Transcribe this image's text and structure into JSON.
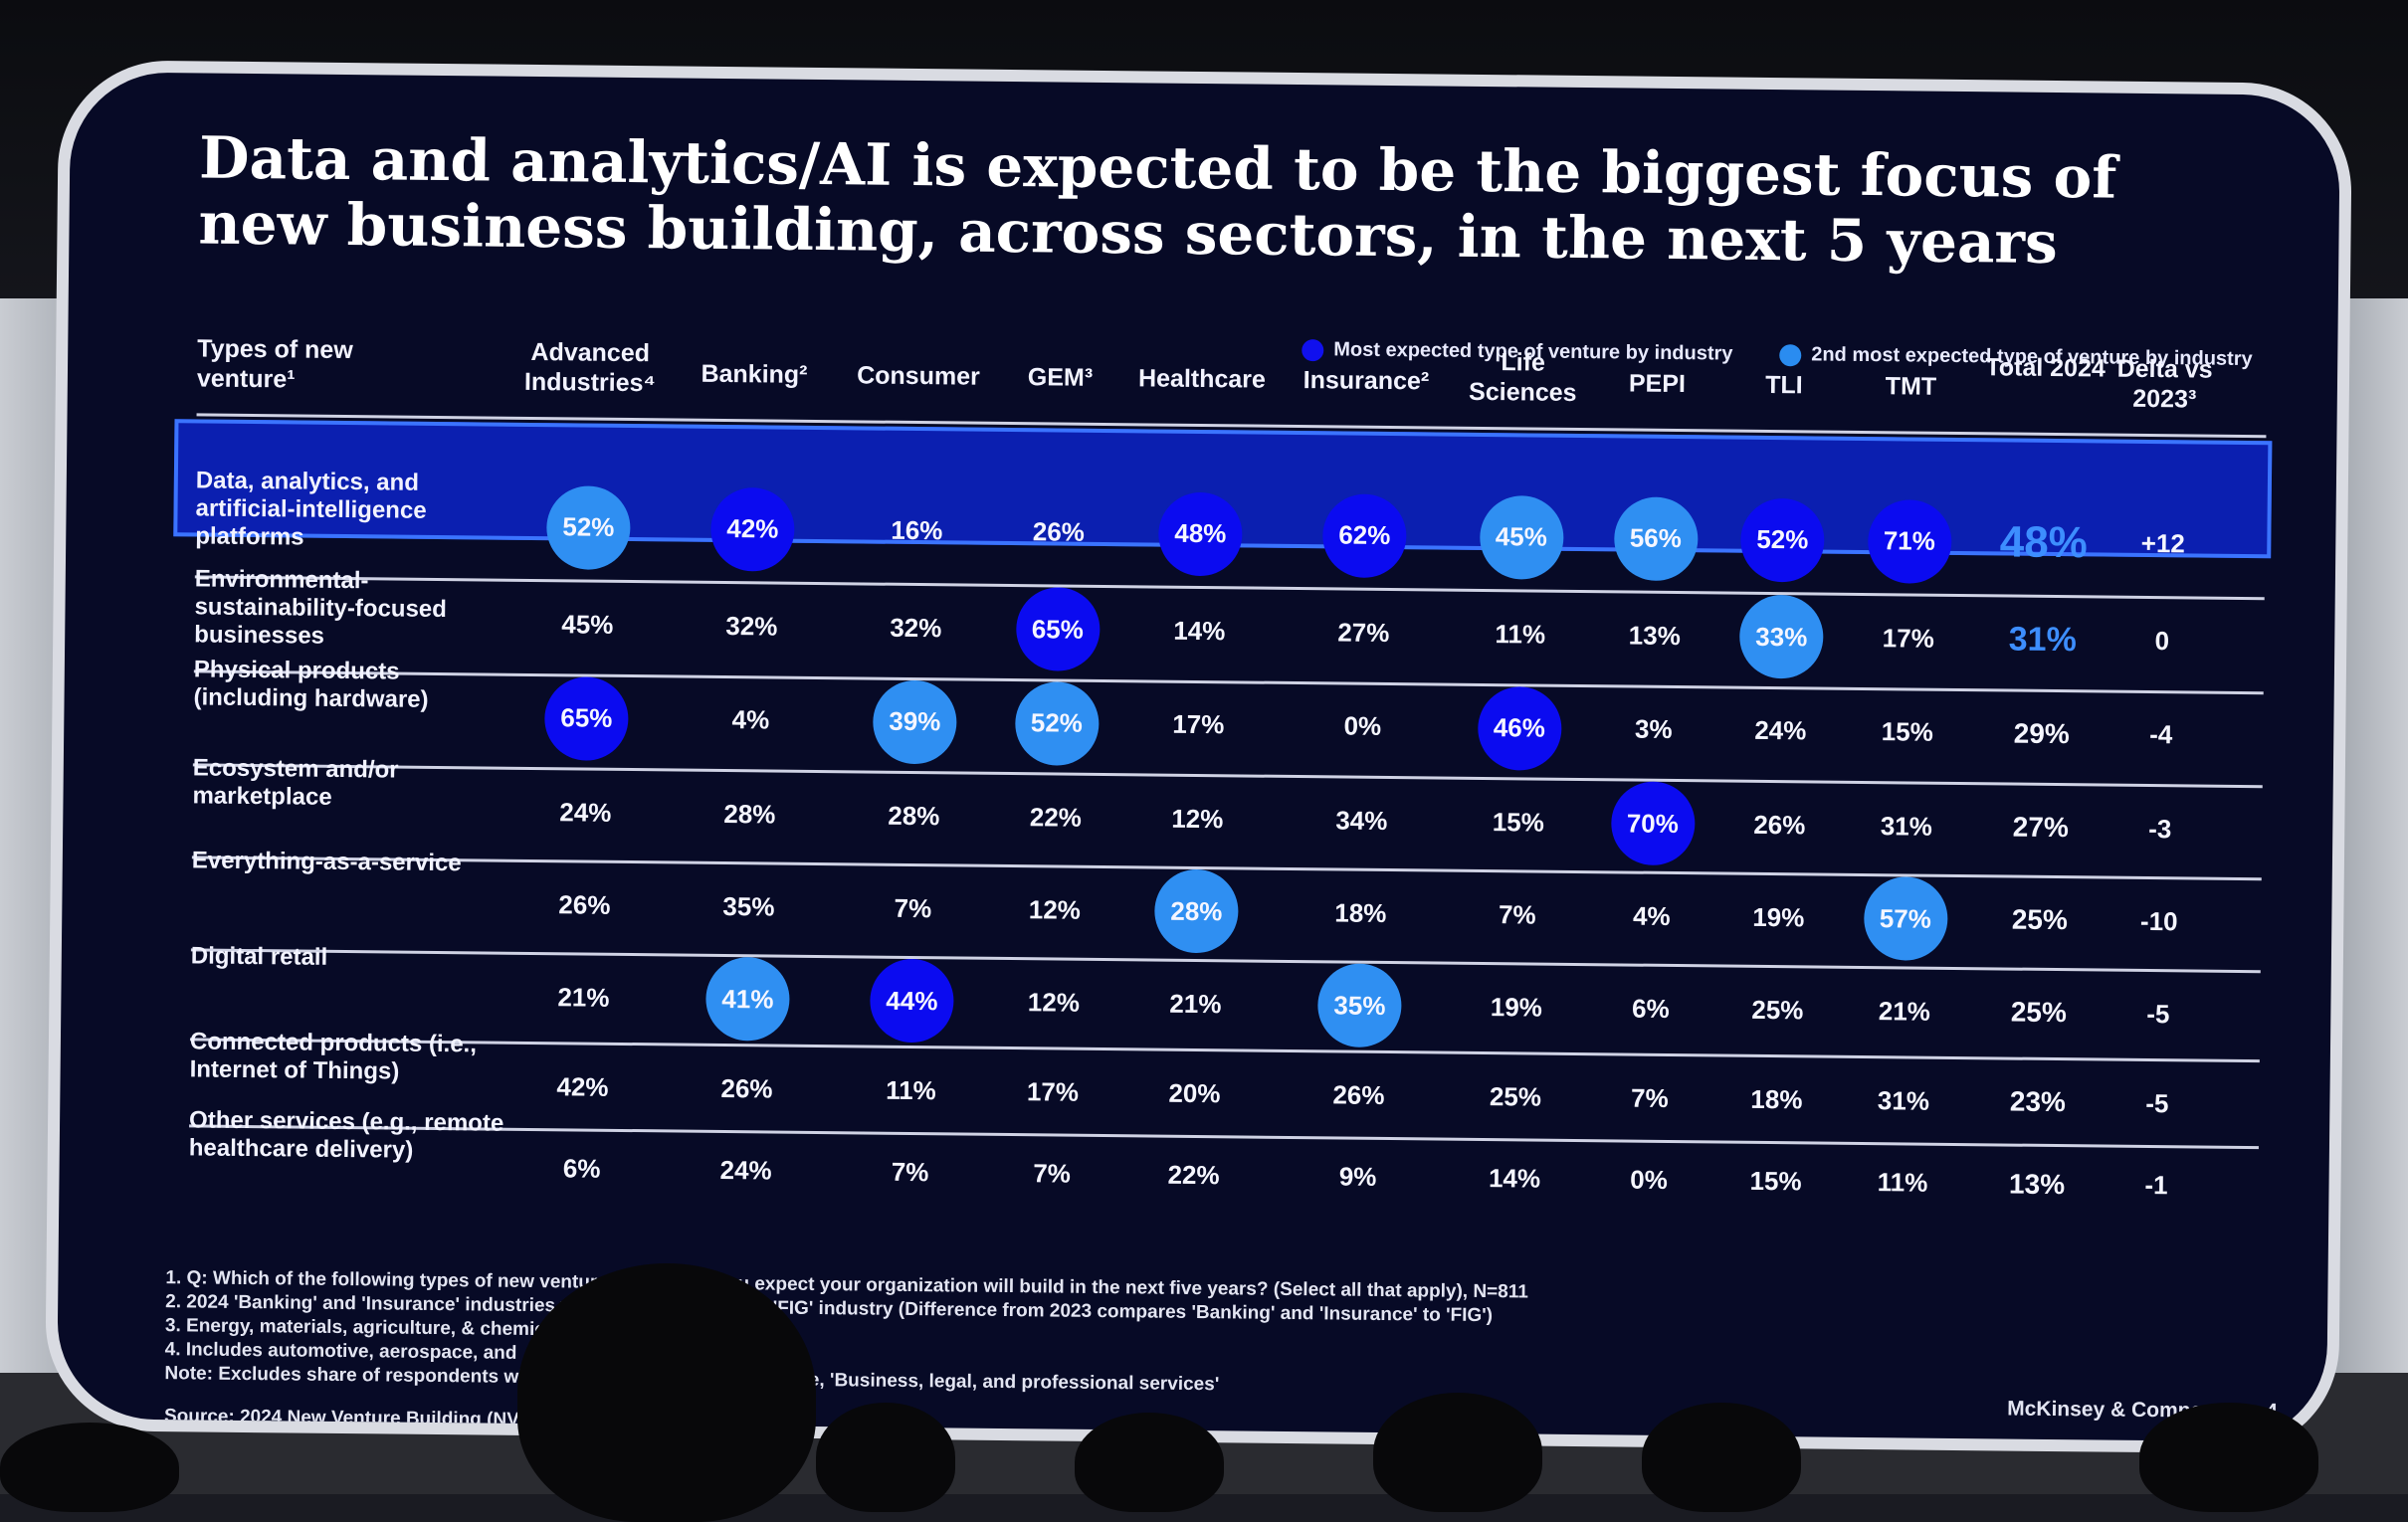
{
  "title": "Data and analytics/AI is expected to be the biggest focus of new business building, across sectors, in the next 5 years",
  "legend": {
    "primary": "Most expected type of venture by industry",
    "secondary": "2nd most expected type of venture by industry",
    "primary_color": "#0b0bf0",
    "secondary_color": "#2f8ff2"
  },
  "row_header": "Types of new venture¹",
  "columns": [
    "Advanced Industries⁴",
    "Banking²",
    "Consumer",
    "GEM³",
    "Healthcare",
    "Insurance²",
    "Life Sciences",
    "PEPI",
    "TLI",
    "TMT",
    "Total 2024",
    "Delta vs 2023³"
  ],
  "rows": [
    {
      "label": "Data, analytics, and artificial-intelligence platforms",
      "values": [
        "52%",
        "42%",
        "16%",
        "26%",
        "48%",
        "62%",
        "45%",
        "56%",
        "52%",
        "71%",
        "48%",
        "+12"
      ],
      "marks": [
        "s",
        "p",
        "",
        "",
        "p",
        "p",
        "s",
        "s",
        "p",
        "p",
        "",
        ""
      ]
    },
    {
      "label": "Environmental-sustainability-focused businesses",
      "values": [
        "45%",
        "32%",
        "32%",
        "65%",
        "14%",
        "27%",
        "11%",
        "13%",
        "33%",
        "17%",
        "31%",
        "0"
      ],
      "marks": [
        "",
        "",
        "",
        "p",
        "",
        "",
        "",
        "",
        "s",
        "",
        "",
        ""
      ]
    },
    {
      "label": "Physical products (including hardware)",
      "values": [
        "65%",
        "4%",
        "39%",
        "52%",
        "17%",
        "0%",
        "46%",
        "3%",
        "24%",
        "15%",
        "29%",
        "-4"
      ],
      "marks": [
        "p",
        "",
        "s",
        "s",
        "",
        "",
        "p",
        "",
        "",
        "",
        "",
        ""
      ]
    },
    {
      "label": "Ecosystem and/or marketplace",
      "values": [
        "24%",
        "28%",
        "28%",
        "22%",
        "12%",
        "34%",
        "15%",
        "70%",
        "26%",
        "31%",
        "27%",
        "-3"
      ],
      "marks": [
        "",
        "",
        "",
        "",
        "",
        "",
        "",
        "p",
        "",
        "",
        "",
        ""
      ]
    },
    {
      "label": "Everything-as-a-service",
      "values": [
        "26%",
        "35%",
        "7%",
        "12%",
        "28%",
        "18%",
        "7%",
        "4%",
        "19%",
        "57%",
        "25%",
        "-10"
      ],
      "marks": [
        "",
        "",
        "",
        "",
        "s",
        "",
        "",
        "",
        "",
        "s",
        "",
        ""
      ]
    },
    {
      "label": "Digital retail",
      "values": [
        "21%",
        "41%",
        "44%",
        "12%",
        "21%",
        "35%",
        "19%",
        "6%",
        "25%",
        "21%",
        "25%",
        "-5"
      ],
      "marks": [
        "",
        "s",
        "p",
        "",
        "",
        "s",
        "",
        "",
        "",
        "",
        "",
        ""
      ]
    },
    {
      "label": "Connected products (i.e., Internet of Things)",
      "values": [
        "42%",
        "26%",
        "11%",
        "17%",
        "20%",
        "26%",
        "25%",
        "7%",
        "18%",
        "31%",
        "23%",
        "-5"
      ],
      "marks": [
        "",
        "",
        "",
        "",
        "",
        "",
        "",
        "",
        "",
        "",
        "",
        ""
      ]
    },
    {
      "label": "Other services (e.g., remote healthcare delivery)",
      "values": [
        "6%",
        "24%",
        "7%",
        "7%",
        "22%",
        "9%",
        "14%",
        "0%",
        "15%",
        "11%",
        "13%",
        "-1"
      ],
      "marks": [
        "",
        "",
        "",
        "",
        "",
        "",
        "",
        "",
        "",
        "",
        "",
        ""
      ]
    }
  ],
  "footnotes": [
    "1.   Q: Which of the following types of new ventures, if any, do you expect your organization will build in the next five years? (Select all that apply), N=811",
    "2.   2024 'Banking' and 'Insurance' industries were combined in 2023 'FIG' industry (Difference from 2023 compares 'Banking' and 'Insurance' to 'FIG')",
    "3.   Energy, materials, agriculture, & chemicals",
    "4.   Includes automotive, aerospace, and",
    "Note: Excludes share of respondents wh                         N/A'; Industries not shown here, 'Business, legal, and professional services'"
  ],
  "source": "Source: 2024 New Venture Building (NVB) Survey",
  "brand": "McKinsey & Company",
  "page_number": "4"
}
